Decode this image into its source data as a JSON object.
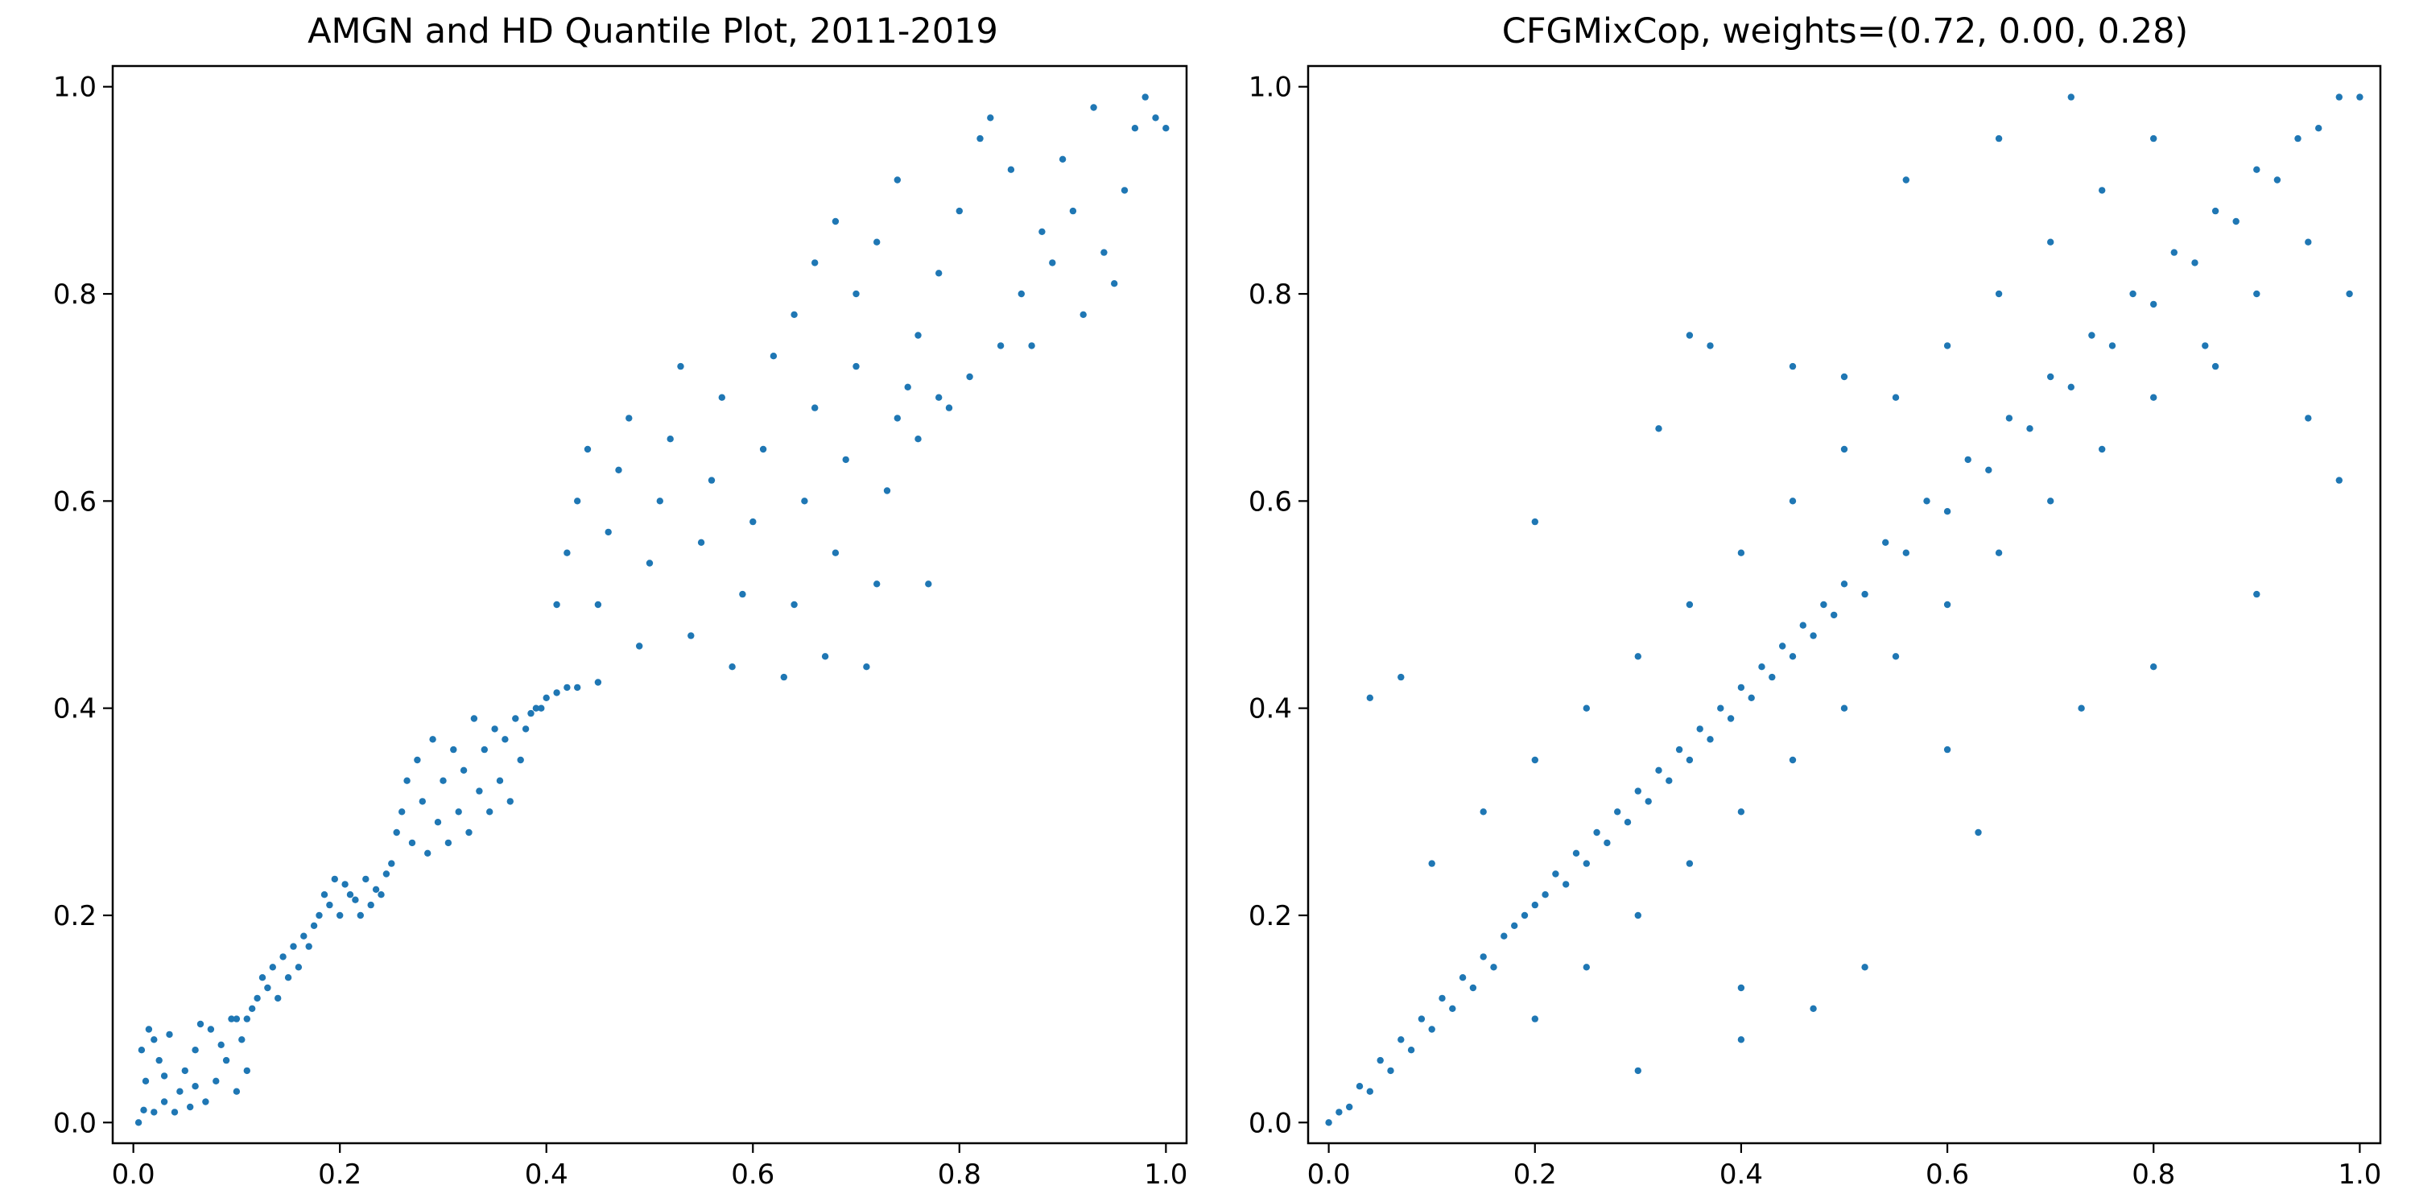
{
  "chart_data": [
    {
      "type": "scatter",
      "title": "AMGN and HD Quantile Plot, 2011-2019",
      "xlabel": "",
      "ylabel": "",
      "xlim": [
        -0.02,
        1.02
      ],
      "ylim": [
        -0.02,
        1.02
      ],
      "xticks": [
        0.0,
        0.2,
        0.4,
        0.6,
        0.8,
        1.0
      ],
      "yticks": [
        0.0,
        0.2,
        0.4,
        0.6,
        0.8,
        1.0
      ],
      "xtick_labels": [
        "0.0",
        "0.2",
        "0.4",
        "0.6",
        "0.8",
        "1.0"
      ],
      "ytick_labels": [
        "0.0",
        "0.2",
        "0.4",
        "0.6",
        "0.8",
        "1.0"
      ],
      "grid": false,
      "marker_color": "#1f77b4",
      "points": [
        [
          0.005,
          0.0
        ],
        [
          0.01,
          0.012
        ],
        [
          0.02,
          0.01
        ],
        [
          0.03,
          0.02
        ],
        [
          0.012,
          0.04
        ],
        [
          0.008,
          0.07
        ],
        [
          0.015,
          0.09
        ],
        [
          0.025,
          0.06
        ],
        [
          0.035,
          0.085
        ],
        [
          0.045,
          0.03
        ],
        [
          0.05,
          0.05
        ],
        [
          0.06,
          0.07
        ],
        [
          0.07,
          0.02
        ],
        [
          0.075,
          0.09
        ],
        [
          0.08,
          0.04
        ],
        [
          0.09,
          0.06
        ],
        [
          0.095,
          0.1
        ],
        [
          0.1,
          0.03
        ],
        [
          0.105,
          0.08
        ],
        [
          0.11,
          0.05
        ],
        [
          0.04,
          0.01
        ],
        [
          0.055,
          0.015
        ],
        [
          0.065,
          0.095
        ],
        [
          0.085,
          0.075
        ],
        [
          0.03,
          0.045
        ],
        [
          0.02,
          0.08
        ],
        [
          0.06,
          0.035
        ],
        [
          0.1,
          0.1
        ],
        [
          0.11,
          0.1
        ],
        [
          0.115,
          0.11
        ],
        [
          0.12,
          0.12
        ],
        [
          0.125,
          0.14
        ],
        [
          0.13,
          0.13
        ],
        [
          0.135,
          0.15
        ],
        [
          0.14,
          0.12
        ],
        [
          0.145,
          0.16
        ],
        [
          0.15,
          0.14
        ],
        [
          0.155,
          0.17
        ],
        [
          0.16,
          0.15
        ],
        [
          0.165,
          0.18
        ],
        [
          0.17,
          0.17
        ],
        [
          0.175,
          0.19
        ],
        [
          0.18,
          0.2
        ],
        [
          0.185,
          0.22
        ],
        [
          0.19,
          0.21
        ],
        [
          0.195,
          0.235
        ],
        [
          0.2,
          0.2
        ],
        [
          0.205,
          0.23
        ],
        [
          0.21,
          0.22
        ],
        [
          0.215,
          0.215
        ],
        [
          0.22,
          0.2
        ],
        [
          0.225,
          0.235
        ],
        [
          0.23,
          0.21
        ],
        [
          0.235,
          0.225
        ],
        [
          0.24,
          0.22
        ],
        [
          0.245,
          0.24
        ],
        [
          0.25,
          0.25
        ],
        [
          0.255,
          0.28
        ],
        [
          0.26,
          0.3
        ],
        [
          0.265,
          0.33
        ],
        [
          0.27,
          0.27
        ],
        [
          0.275,
          0.35
        ],
        [
          0.28,
          0.31
        ],
        [
          0.285,
          0.26
        ],
        [
          0.29,
          0.37
        ],
        [
          0.295,
          0.29
        ],
        [
          0.3,
          0.33
        ],
        [
          0.305,
          0.27
        ],
        [
          0.31,
          0.36
        ],
        [
          0.315,
          0.3
        ],
        [
          0.32,
          0.34
        ],
        [
          0.325,
          0.28
        ],
        [
          0.33,
          0.39
        ],
        [
          0.335,
          0.32
        ],
        [
          0.34,
          0.36
        ],
        [
          0.345,
          0.3
        ],
        [
          0.35,
          0.38
        ],
        [
          0.355,
          0.33
        ],
        [
          0.36,
          0.37
        ],
        [
          0.365,
          0.31
        ],
        [
          0.37,
          0.39
        ],
        [
          0.375,
          0.35
        ],
        [
          0.38,
          0.38
        ],
        [
          0.385,
          0.395
        ],
        [
          0.39,
          0.4
        ],
        [
          0.395,
          0.4
        ],
        [
          0.4,
          0.41
        ],
        [
          0.41,
          0.415
        ],
        [
          0.42,
          0.42
        ],
        [
          0.43,
          0.42
        ],
        [
          0.45,
          0.425
        ],
        [
          0.41,
          0.5
        ],
        [
          0.42,
          0.55
        ],
        [
          0.43,
          0.6
        ],
        [
          0.44,
          0.65
        ],
        [
          0.45,
          0.5
        ],
        [
          0.46,
          0.57
        ],
        [
          0.47,
          0.63
        ],
        [
          0.48,
          0.68
        ],
        [
          0.49,
          0.46
        ],
        [
          0.5,
          0.54
        ],
        [
          0.51,
          0.6
        ],
        [
          0.52,
          0.66
        ],
        [
          0.53,
          0.73
        ],
        [
          0.54,
          0.47
        ],
        [
          0.55,
          0.56
        ],
        [
          0.56,
          0.62
        ],
        [
          0.57,
          0.7
        ],
        [
          0.58,
          0.44
        ],
        [
          0.59,
          0.51
        ],
        [
          0.6,
          0.58
        ],
        [
          0.61,
          0.65
        ],
        [
          0.62,
          0.74
        ],
        [
          0.63,
          0.43
        ],
        [
          0.64,
          0.5
        ],
        [
          0.65,
          0.6
        ],
        [
          0.66,
          0.69
        ],
        [
          0.67,
          0.45
        ],
        [
          0.68,
          0.55
        ],
        [
          0.69,
          0.64
        ],
        [
          0.7,
          0.73
        ],
        [
          0.71,
          0.44
        ],
        [
          0.72,
          0.52
        ],
        [
          0.73,
          0.61
        ],
        [
          0.74,
          0.68
        ],
        [
          0.75,
          0.71
        ],
        [
          0.76,
          0.66
        ],
        [
          0.77,
          0.52
        ],
        [
          0.78,
          0.7
        ],
        [
          0.64,
          0.78
        ],
        [
          0.66,
          0.83
        ],
        [
          0.68,
          0.87
        ],
        [
          0.7,
          0.8
        ],
        [
          0.72,
          0.85
        ],
        [
          0.74,
          0.91
        ],
        [
          0.76,
          0.76
        ],
        [
          0.78,
          0.82
        ],
        [
          0.8,
          0.88
        ],
        [
          0.82,
          0.95
        ],
        [
          0.84,
          0.75
        ],
        [
          0.86,
          0.8
        ],
        [
          0.88,
          0.86
        ],
        [
          0.9,
          0.93
        ],
        [
          0.92,
          0.78
        ],
        [
          0.94,
          0.84
        ],
        [
          0.96,
          0.9
        ],
        [
          0.97,
          0.96
        ],
        [
          0.98,
          0.99
        ],
        [
          0.99,
          0.97
        ],
        [
          1.0,
          0.96
        ],
        [
          0.95,
          0.81
        ],
        [
          0.93,
          0.98
        ],
        [
          0.87,
          0.75
        ],
        [
          0.79,
          0.69
        ],
        [
          0.83,
          0.97
        ],
        [
          0.89,
          0.83
        ],
        [
          0.91,
          0.88
        ],
        [
          0.85,
          0.92
        ],
        [
          0.81,
          0.72
        ]
      ]
    },
    {
      "type": "scatter",
      "title": "CFGMixCop, weights=(0.72, 0.00, 0.28)",
      "xlabel": "",
      "ylabel": "",
      "xlim": [
        -0.02,
        1.02
      ],
      "ylim": [
        -0.02,
        1.02
      ],
      "xticks": [
        0.0,
        0.2,
        0.4,
        0.6,
        0.8,
        1.0
      ],
      "yticks": [
        0.0,
        0.2,
        0.4,
        0.6,
        0.8,
        1.0
      ],
      "xtick_labels": [
        "0.0",
        "0.2",
        "0.4",
        "0.6",
        "0.8",
        "1.0"
      ],
      "ytick_labels": [
        "0.0",
        "0.2",
        "0.4",
        "0.6",
        "0.8",
        "1.0"
      ],
      "grid": false,
      "marker_color": "#1f77b4",
      "points": [
        [
          0.0,
          0.0
        ],
        [
          0.01,
          0.01
        ],
        [
          0.02,
          0.015
        ],
        [
          0.03,
          0.035
        ],
        [
          0.04,
          0.03
        ],
        [
          0.05,
          0.06
        ],
        [
          0.06,
          0.05
        ],
        [
          0.07,
          0.08
        ],
        [
          0.08,
          0.07
        ],
        [
          0.09,
          0.1
        ],
        [
          0.1,
          0.09
        ],
        [
          0.11,
          0.12
        ],
        [
          0.12,
          0.11
        ],
        [
          0.13,
          0.14
        ],
        [
          0.14,
          0.13
        ],
        [
          0.15,
          0.16
        ],
        [
          0.16,
          0.15
        ],
        [
          0.17,
          0.18
        ],
        [
          0.18,
          0.19
        ],
        [
          0.19,
          0.2
        ],
        [
          0.2,
          0.21
        ],
        [
          0.21,
          0.22
        ],
        [
          0.22,
          0.24
        ],
        [
          0.23,
          0.23
        ],
        [
          0.24,
          0.26
        ],
        [
          0.25,
          0.25
        ],
        [
          0.26,
          0.28
        ],
        [
          0.27,
          0.27
        ],
        [
          0.28,
          0.3
        ],
        [
          0.29,
          0.29
        ],
        [
          0.3,
          0.32
        ],
        [
          0.31,
          0.31
        ],
        [
          0.32,
          0.34
        ],
        [
          0.33,
          0.33
        ],
        [
          0.34,
          0.36
        ],
        [
          0.35,
          0.35
        ],
        [
          0.36,
          0.38
        ],
        [
          0.37,
          0.37
        ],
        [
          0.38,
          0.4
        ],
        [
          0.39,
          0.39
        ],
        [
          0.4,
          0.42
        ],
        [
          0.41,
          0.41
        ],
        [
          0.42,
          0.44
        ],
        [
          0.43,
          0.43
        ],
        [
          0.44,
          0.46
        ],
        [
          0.45,
          0.45
        ],
        [
          0.46,
          0.48
        ],
        [
          0.47,
          0.47
        ],
        [
          0.48,
          0.5
        ],
        [
          0.49,
          0.49
        ],
        [
          0.5,
          0.52
        ],
        [
          0.52,
          0.51
        ],
        [
          0.54,
          0.56
        ],
        [
          0.56,
          0.55
        ],
        [
          0.58,
          0.6
        ],
        [
          0.6,
          0.59
        ],
        [
          0.62,
          0.64
        ],
        [
          0.64,
          0.63
        ],
        [
          0.66,
          0.68
        ],
        [
          0.68,
          0.67
        ],
        [
          0.7,
          0.72
        ],
        [
          0.72,
          0.71
        ],
        [
          0.74,
          0.76
        ],
        [
          0.76,
          0.75
        ],
        [
          0.78,
          0.8
        ],
        [
          0.8,
          0.79
        ],
        [
          0.82,
          0.84
        ],
        [
          0.84,
          0.83
        ],
        [
          0.86,
          0.88
        ],
        [
          0.88,
          0.87
        ],
        [
          0.9,
          0.92
        ],
        [
          0.92,
          0.91
        ],
        [
          0.94,
          0.95
        ],
        [
          0.96,
          0.96
        ],
        [
          0.98,
          0.99
        ],
        [
          1.0,
          0.99
        ],
        [
          0.1,
          0.25
        ],
        [
          0.15,
          0.3
        ],
        [
          0.2,
          0.35
        ],
        [
          0.25,
          0.4
        ],
        [
          0.3,
          0.45
        ],
        [
          0.35,
          0.5
        ],
        [
          0.4,
          0.55
        ],
        [
          0.45,
          0.6
        ],
        [
          0.5,
          0.65
        ],
        [
          0.55,
          0.7
        ],
        [
          0.6,
          0.75
        ],
        [
          0.65,
          0.8
        ],
        [
          0.7,
          0.85
        ],
        [
          0.75,
          0.9
        ],
        [
          0.8,
          0.95
        ],
        [
          0.2,
          0.1
        ],
        [
          0.25,
          0.15
        ],
        [
          0.3,
          0.2
        ],
        [
          0.35,
          0.25
        ],
        [
          0.4,
          0.3
        ],
        [
          0.45,
          0.35
        ],
        [
          0.5,
          0.4
        ],
        [
          0.55,
          0.45
        ],
        [
          0.6,
          0.5
        ],
        [
          0.65,
          0.55
        ],
        [
          0.7,
          0.6
        ],
        [
          0.75,
          0.65
        ],
        [
          0.8,
          0.7
        ],
        [
          0.85,
          0.75
        ],
        [
          0.9,
          0.8
        ],
        [
          0.95,
          0.85
        ],
        [
          0.04,
          0.41
        ],
        [
          0.07,
          0.43
        ],
        [
          0.2,
          0.58
        ],
        [
          0.32,
          0.67
        ],
        [
          0.35,
          0.76
        ],
        [
          0.37,
          0.75
        ],
        [
          0.56,
          0.91
        ],
        [
          0.65,
          0.95
        ],
        [
          0.72,
          0.99
        ],
        [
          0.8,
          0.44
        ],
        [
          0.9,
          0.51
        ],
        [
          0.98,
          0.62
        ],
        [
          0.4,
          0.08
        ],
        [
          0.4,
          0.13
        ],
        [
          0.3,
          0.05
        ],
        [
          0.47,
          0.11
        ],
        [
          0.52,
          0.15
        ],
        [
          0.63,
          0.28
        ],
        [
          0.73,
          0.4
        ],
        [
          0.6,
          0.36
        ],
        [
          0.86,
          0.73
        ],
        [
          0.95,
          0.68
        ],
        [
          0.99,
          0.8
        ],
        [
          0.5,
          0.72
        ],
        [
          0.45,
          0.73
        ]
      ]
    }
  ]
}
